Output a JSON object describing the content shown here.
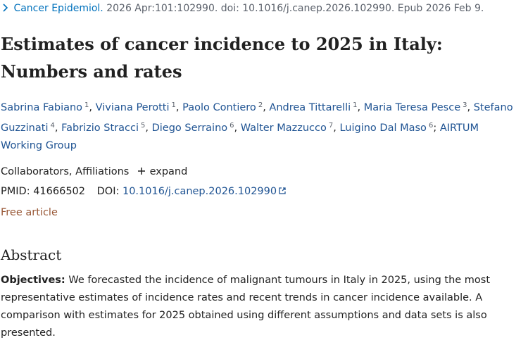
{
  "citation": {
    "journal": "Cancer Epidemiol.",
    "details": "2026 Apr:101:102990. doi: 10.1016/j.canep.2026.102990. Epub 2026 Feb 9."
  },
  "title": "Estimates of cancer incidence to 2025 in Italy: Numbers and rates",
  "authors": [
    {
      "name": "Sabrina Fabiano",
      "affiliation": "1",
      "separator": ","
    },
    {
      "name": "Viviana Perotti",
      "affiliation": "1",
      "separator": ","
    },
    {
      "name": "Paolo Contiero",
      "affiliation": "2",
      "separator": ","
    },
    {
      "name": "Andrea Tittarelli",
      "affiliation": "1",
      "separator": ","
    },
    {
      "name": "Maria Teresa Pesce",
      "affiliation": "3",
      "separator": ","
    },
    {
      "name": "Stefano Guzzinati",
      "affiliation": "4",
      "separator": ","
    },
    {
      "name": "Fabrizio Stracci",
      "affiliation": "5",
      "separator": ","
    },
    {
      "name": "Diego Serraino",
      "affiliation": "6",
      "separator": ","
    },
    {
      "name": "Walter Mazzucco",
      "affiliation": "7",
      "separator": ","
    },
    {
      "name": "Luigino Dal Maso",
      "affiliation": "6",
      "separator": ";"
    }
  ],
  "group": "AIRTUM Working Group",
  "collaborators": "Collaborators, Affiliations",
  "expand": "expand",
  "pmid": {
    "label": "PMID:",
    "value": "41666502"
  },
  "doi": {
    "label": "DOI:",
    "value": "10.1016/j.canep.2026.102990"
  },
  "free_article": "Free article",
  "abstract": {
    "heading": "Abstract",
    "label": "Objectives:",
    "text": "We forecasted the incidence of malignant tumours in Italy in 2025, using the most representative estimates of incidence rates and recent trends in cancer incidence available. A comparison with estimates for 2025 obtained using different assumptions and data sets is also presented."
  }
}
